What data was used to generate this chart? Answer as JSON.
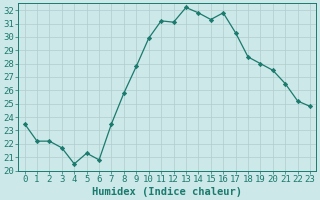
{
  "x": [
    0,
    1,
    2,
    3,
    4,
    5,
    6,
    7,
    8,
    9,
    10,
    11,
    12,
    13,
    14,
    15,
    16,
    17,
    18,
    19,
    20,
    21,
    22,
    23
  ],
  "y": [
    23.5,
    22.2,
    22.2,
    21.7,
    20.5,
    21.3,
    20.8,
    23.5,
    25.8,
    27.8,
    29.9,
    31.2,
    31.1,
    32.2,
    31.8,
    31.3,
    31.8,
    30.3,
    28.5,
    28.0,
    27.5,
    26.5,
    25.2,
    24.8
  ],
  "line_color": "#1a7a6e",
  "marker": "D",
  "marker_size": 2.2,
  "bg_color": "#cde8e8",
  "grid_color": "#b0cccc",
  "xlabel": "Humidex (Indice chaleur)",
  "ylim": [
    20,
    32.5
  ],
  "xlim": [
    -0.5,
    23.5
  ],
  "yticks": [
    20,
    21,
    22,
    23,
    24,
    25,
    26,
    27,
    28,
    29,
    30,
    31,
    32
  ],
  "xticks": [
    0,
    1,
    2,
    3,
    4,
    5,
    6,
    7,
    8,
    9,
    10,
    11,
    12,
    13,
    14,
    15,
    16,
    17,
    18,
    19,
    20,
    21,
    22,
    23
  ],
  "axis_color": "#1a7a6e",
  "tick_color": "#1a7a6e",
  "label_color": "#1a7a6e",
  "font_size": 6.5,
  "xlabel_fontsize": 7.5
}
